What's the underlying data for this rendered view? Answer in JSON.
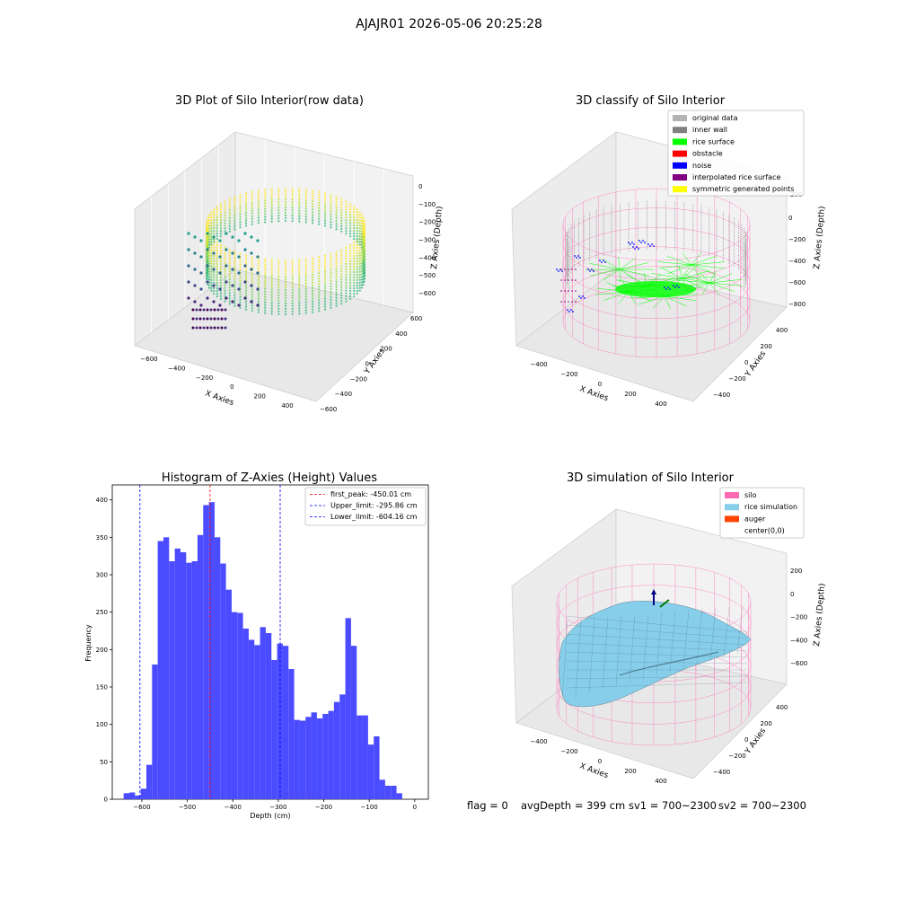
{
  "suptitle": "AJAJR01 2026-05-06 20:25:28",
  "footer": {
    "flag": "flag = 0",
    "avg_depth": "avgDepth = 399 cm",
    "sv1": "sv1 = 700~2300",
    "sv2": "sv2 = 700~2300"
  },
  "colors": {
    "hist_bar": "#4b4bff",
    "peak_line": "#ff0000",
    "limit_line": "#0000ff",
    "silo": "#ff69b4",
    "rice_sim": "#87ceeb",
    "auger": "#ff4500",
    "original": "#b3b3b3",
    "inner_wall": "#808080",
    "rice_surface": "#00ff00",
    "obstacle": "#ff0000",
    "noise": "#0000ff",
    "interp": "#800080",
    "symmetric": "#ffff00"
  },
  "plot1": {
    "title": "3D Plot of Silo Interior(row data)",
    "xlabel": "X Axies",
    "ylabel": "Y Axies",
    "zlabel": "Z Axies (Depth)",
    "xticks": [
      "−600",
      "−400",
      "−200",
      "0",
      "200",
      "400"
    ],
    "yticks": [
      "−600",
      "−400",
      "−200",
      "0",
      "200",
      "400",
      "600"
    ],
    "zticks": [
      "0",
      "−100",
      "−200",
      "−300",
      "−400",
      "−500",
      "−600"
    ]
  },
  "plot2": {
    "title": "3D classify of Silo Interior",
    "xlabel": "X Axies",
    "ylabel": "Y Axies",
    "zlabel": "Z Axies (Depth)",
    "xticks": [
      "−400",
      "−200",
      "0",
      "200",
      "400"
    ],
    "yticks": [
      "−400",
      "−200",
      "0",
      "200",
      "400"
    ],
    "zticks": [
      "0",
      "−200",
      "−400",
      "−600",
      "−800",
      "200"
    ],
    "legend": [
      "original data",
      "inner wall",
      "rice surface",
      "obstacle",
      "noise",
      "interpolated rice surface",
      "symmetric generated points"
    ],
    "legend_colors": [
      "#b3b3b3",
      "#808080",
      "#00ff00",
      "#ff0000",
      "#0000ff",
      "#800080",
      "#ffff00"
    ]
  },
  "plot4": {
    "title": "3D simulation of Silo Interior",
    "xlabel": "X Axies",
    "ylabel": "Y Axies",
    "zlabel": "Z Axies (Depth)",
    "xticks": [
      "−400",
      "−200",
      "0",
      "200",
      "400"
    ],
    "yticks": [
      "−400",
      "−200",
      "0",
      "200",
      "400"
    ],
    "zticks": [
      "200",
      "0",
      "−200",
      "−400",
      "−600"
    ],
    "legend": [
      "silo",
      "rice simulation",
      "auger",
      "center(0,0)"
    ],
    "legend_colors": [
      "#ff69b4",
      "#87ceeb",
      "#ff4500",
      "#ffffff"
    ]
  },
  "chart_data": [
    {
      "type": "bar",
      "title": "Histogram of Z-Axies (Height) Values",
      "xlabel": "Depth (cm)",
      "ylabel": "Frequency",
      "xlim": [
        -665,
        30
      ],
      "ylim": [
        0,
        420
      ],
      "bin_start": -640,
      "bin_width": 12.5,
      "values": [
        8,
        9,
        5,
        14,
        46,
        180,
        345,
        350,
        318,
        335,
        330,
        316,
        318,
        353,
        393,
        397,
        350,
        315,
        280,
        250,
        249,
        228,
        213,
        206,
        230,
        222,
        186,
        208,
        205,
        174,
        106,
        105,
        110,
        116,
        108,
        114,
        118,
        130,
        140,
        242,
        205,
        112,
        112,
        73,
        84,
        26,
        18,
        18,
        8
      ],
      "xticks": [
        -600,
        -500,
        -400,
        -300,
        -200,
        -100,
        0
      ],
      "xtick_labels": [
        "−600",
        "−500",
        "−400",
        "−300",
        "−200",
        "−100",
        "0"
      ],
      "yticks": [
        0,
        50,
        100,
        150,
        200,
        250,
        300,
        350,
        400
      ],
      "vlines": [
        {
          "x": -450.01,
          "color": "#ff0000",
          "label": "first_peak: -450.01 cm"
        },
        {
          "x": -295.86,
          "color": "#0000ff",
          "label": "Upper_limit: -295.86 cm"
        },
        {
          "x": -604.16,
          "color": "#0000ff",
          "label": "Lower_limit: -604.16 cm"
        }
      ],
      "legend_position": "upper right"
    }
  ]
}
